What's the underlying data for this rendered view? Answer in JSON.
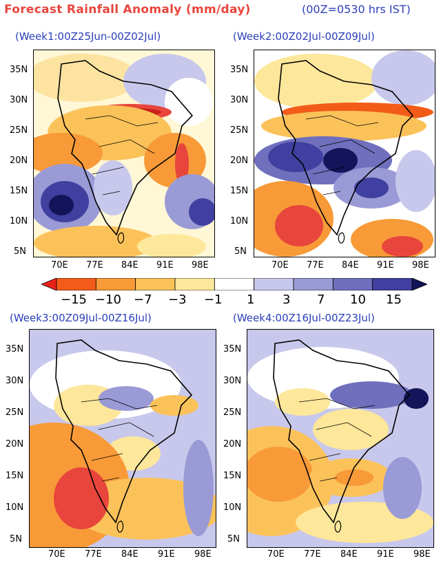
{
  "header": {
    "title": "Forecast Rainfall Anomaly (mm/day)",
    "time_note": "(00Z=0530 hrs IST)"
  },
  "panels": [
    {
      "title": "(Week1:00Z25Jun-00Z02Jul)"
    },
    {
      "title": "(Week2:00Z02Jul-00Z09Jul)"
    },
    {
      "title": "(Week3:00Z09Jul-00Z16Jul)"
    },
    {
      "title": "(Week4:00Z16Jul-00Z23Jul)"
    }
  ],
  "axes": {
    "lat_labels": [
      "35N",
      "30N",
      "25N",
      "20N",
      "15N",
      "10N",
      "5N"
    ],
    "lon_labels": [
      "70E",
      "77E",
      "84E",
      "91E",
      "98E"
    ]
  },
  "colorbar": {
    "labels": [
      "−15",
      "−10",
      "−7",
      "−3",
      "−1",
      "1",
      "3",
      "7",
      "10",
      "15"
    ],
    "colors": [
      "#e8221a",
      "#f25c18",
      "#f89a38",
      "#fbc25a",
      "#fde79a",
      "#ffffff",
      "#c8c8ec",
      "#9a9ad6",
      "#6f6fbd",
      "#4040a0",
      "#14145a"
    ]
  }
}
